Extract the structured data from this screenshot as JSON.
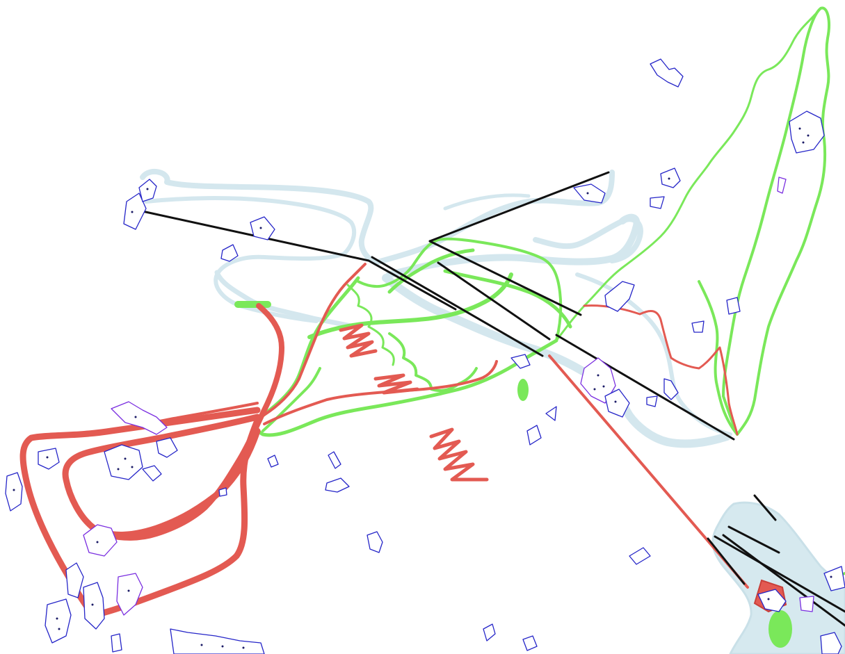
{
  "map": {
    "background": "#ffffff",
    "colors": {
      "water": "#d4e7ee",
      "green_route": "#7ae85a",
      "red_route": "#e35a52",
      "black_segment": "#111111",
      "polygon_outline_blue": "#2525c8",
      "polygon_outline_violet": "#7a2ee0",
      "polygon_marker": "#1a1a66"
    },
    "layers": [
      "water-features",
      "green-routes",
      "red-routes",
      "black-segments",
      "outlined-polygons"
    ]
  }
}
